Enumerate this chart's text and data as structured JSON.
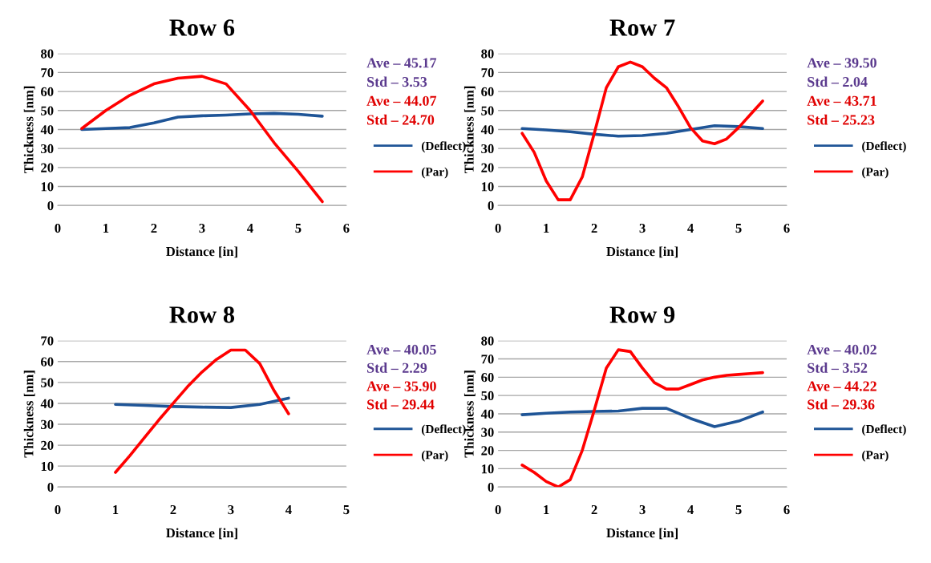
{
  "chart_data": [
    {
      "type": "line",
      "title": "Row 6",
      "xlabel": "Distance [in]",
      "ylabel": "Thickness [nm]",
      "xlim": [
        0,
        6
      ],
      "xticks": [
        0,
        1,
        2,
        3,
        4,
        5,
        6
      ],
      "ylim": [
        0,
        80
      ],
      "yticks": [
        0,
        10,
        20,
        30,
        40,
        50,
        60,
        70,
        80
      ],
      "grid": "y",
      "legend": "right",
      "line_style": "solid",
      "marker": "none",
      "annotations": [
        "Ave – 45.17",
        "Std – 3.53",
        "Ave – 44.07",
        "Std – 24.70"
      ],
      "x": [
        0.5,
        1,
        1.5,
        2,
        2.5,
        3,
        3.5,
        4,
        4.5,
        5,
        5.5
      ],
      "series": [
        {
          "name": "(Deflect)",
          "color": "#1f5597",
          "values": [
            40,
            40.5,
            41,
            43.5,
            46.5,
            47.2,
            47.6,
            48.2,
            48.5,
            48,
            47
          ]
        },
        {
          "name": "(Par)",
          "color": "#ff0000",
          "values": [
            40.5,
            50,
            58,
            64,
            67,
            68,
            64,
            50,
            33,
            18,
            2
          ]
        }
      ]
    },
    {
      "type": "line",
      "title": "Row 7",
      "xlabel": "Distance [in]",
      "ylabel": "Thickness [nm]",
      "xlim": [
        0,
        6
      ],
      "xticks": [
        0,
        1,
        2,
        3,
        4,
        5,
        6
      ],
      "ylim": [
        0,
        80
      ],
      "yticks": [
        0,
        10,
        20,
        30,
        40,
        50,
        60,
        70,
        80
      ],
      "grid": "y",
      "legend": "right",
      "line_style": "solid",
      "marker": "none",
      "annotations": [
        "Ave – 39.50",
        "Std – 2.04",
        "Ave – 43.71",
        "Std – 25.23"
      ],
      "x": [
        0.5,
        1,
        1.5,
        2,
        2.5,
        3,
        3.5,
        4,
        4.5,
        5,
        5.5
      ],
      "series": [
        {
          "name": "(Deflect)",
          "color": "#1f5597",
          "values": [
            40.5,
            39.8,
            38.8,
            37.5,
            36.5,
            36.8,
            38,
            40,
            42,
            41.5,
            40.5
          ]
        },
        {
          "name": "(Par)",
          "color": "#ff0000",
          "x": [
            0.5,
            0.75,
            1,
            1.25,
            1.5,
            1.75,
            2,
            2.25,
            2.5,
            2.75,
            3,
            3.25,
            3.5,
            3.75,
            4,
            4.25,
            4.5,
            4.75,
            5,
            5.25,
            5.5
          ],
          "values": [
            38,
            28,
            13,
            3,
            3,
            15,
            38,
            62,
            73,
            75.5,
            73,
            67,
            62,
            52,
            41,
            34,
            32.5,
            35,
            41,
            48,
            55
          ]
        }
      ]
    },
    {
      "type": "line",
      "title": "Row 8",
      "xlabel": "Distance [in]",
      "ylabel": "Thickness [nm]",
      "xlim": [
        0,
        5
      ],
      "xticks": [
        0,
        1,
        2,
        3,
        4,
        5
      ],
      "ylim": [
        0,
        70
      ],
      "yticks": [
        0,
        10,
        20,
        30,
        40,
        50,
        60,
        70
      ],
      "grid": "y",
      "legend": "right",
      "line_style": "solid",
      "marker": "none",
      "annotations": [
        "Ave – 40.05",
        "Std – 2.29",
        "Ave – 35.90",
        "Std – 29.44"
      ],
      "series": [
        {
          "name": "(Deflect)",
          "color": "#1f5597",
          "x": [
            1,
            1.5,
            2,
            2.5,
            3,
            3.5,
            4
          ],
          "values": [
            39.5,
            39,
            38.5,
            38.2,
            38,
            39.5,
            42.5
          ]
        },
        {
          "name": "(Par)",
          "color": "#ff0000",
          "x": [
            1,
            1.25,
            1.5,
            1.75,
            2,
            2.25,
            2.5,
            2.75,
            3,
            3.25,
            3.5,
            3.75,
            4
          ],
          "values": [
            7,
            15,
            23.5,
            32,
            40,
            48,
            55,
            61,
            65.5,
            65.5,
            59,
            46,
            35
          ]
        }
      ]
    },
    {
      "type": "line",
      "title": "Row 9",
      "xlabel": "Distance [in]",
      "ylabel": "Thickness [nm]",
      "xlim": [
        0,
        6
      ],
      "xticks": [
        0,
        1,
        2,
        3,
        4,
        5,
        6
      ],
      "ylim": [
        0,
        80
      ],
      "yticks": [
        0,
        10,
        20,
        30,
        40,
        50,
        60,
        70,
        80
      ],
      "grid": "y",
      "legend": "right",
      "line_style": "solid",
      "marker": "none",
      "annotations": [
        "Ave – 40.02",
        "Std – 3.52",
        "Ave – 44.22",
        "Std – 29.36"
      ],
      "x": [
        0.5,
        1,
        1.5,
        2,
        2.5,
        3,
        3.5,
        4,
        4.5,
        5,
        5.5
      ],
      "series": [
        {
          "name": "(Deflect)",
          "color": "#1f5597",
          "values": [
            39.5,
            40.3,
            41,
            41.3,
            41.5,
            43,
            43,
            37.5,
            33,
            36,
            41
          ]
        },
        {
          "name": "(Par)",
          "color": "#ff0000",
          "x": [
            0.5,
            0.75,
            1,
            1.25,
            1.5,
            1.75,
            2,
            2.25,
            2.5,
            2.75,
            3,
            3.25,
            3.5,
            3.75,
            4,
            4.25,
            4.5,
            4.75,
            5,
            5.25,
            5.5
          ],
          "values": [
            12,
            8,
            3,
            0,
            4,
            20,
            42,
            65,
            75,
            74,
            65,
            57,
            53.5,
            53.5,
            56,
            58.5,
            60,
            61,
            61.5,
            62,
            62.5
          ]
        }
      ]
    }
  ]
}
